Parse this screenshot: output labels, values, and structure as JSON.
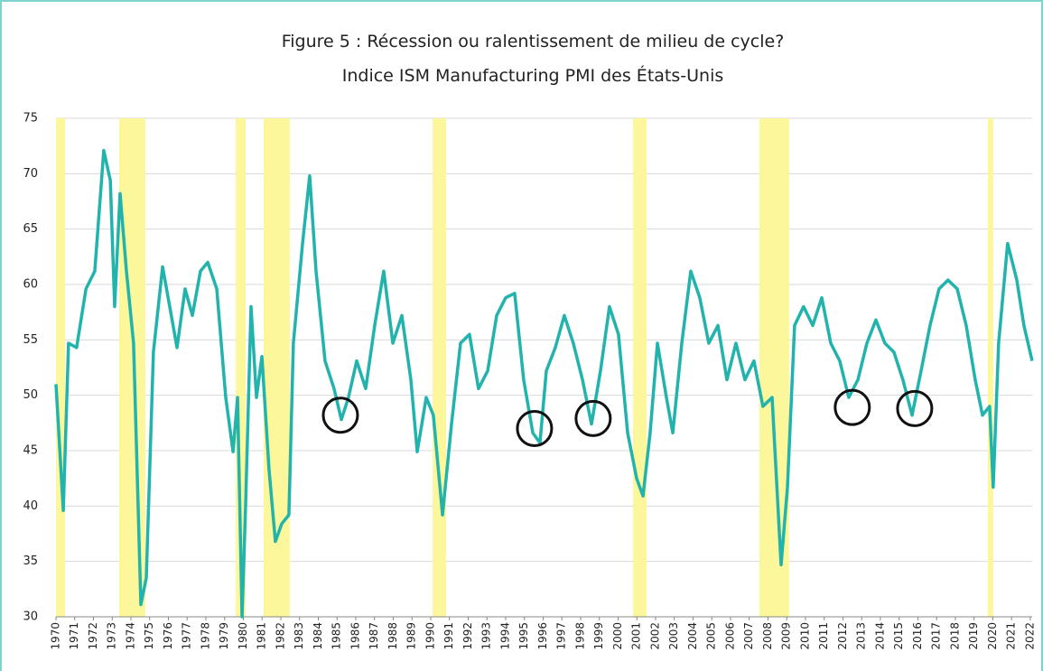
{
  "chart_data": {
    "type": "line",
    "title": "Figure 5 : Récession ou ralentissement de milieu de cycle?",
    "subtitle": "Indice ISM Manufacturing PMI des États-Unis",
    "color": "#22b3ad",
    "band_color": "#fbf79a",
    "grid": true,
    "xlim": [
      1970,
      2022.1
    ],
    "ylim": [
      30,
      75
    ],
    "yticks": [
      30,
      35,
      40,
      45,
      50,
      55,
      60,
      65,
      70,
      75
    ],
    "xticks": [
      1970,
      1971,
      1972,
      1973,
      1974,
      1975,
      1976,
      1977,
      1978,
      1979,
      1980,
      1981,
      1982,
      1983,
      1984,
      1985,
      1986,
      1987,
      1988,
      1989,
      1990,
      1991,
      1992,
      1993,
      1994,
      1995,
      1996,
      1997,
      1998,
      1999,
      2000,
      2001,
      2002,
      2003,
      2004,
      2005,
      2006,
      2007,
      2008,
      2009,
      2010,
      2011,
      2012,
      2013,
      2014,
      2015,
      2016,
      2017,
      2018,
      2019,
      2020,
      2021,
      2022
    ],
    "recessions": [
      [
        1970.0,
        1970.48
      ],
      [
        1973.37,
        1974.77
      ],
      [
        1979.59,
        1980.12
      ],
      [
        1981.08,
        1982.48
      ],
      [
        1990.1,
        1990.82
      ],
      [
        2000.8,
        2001.52
      ],
      [
        2007.54,
        2009.13
      ],
      [
        2019.73,
        2020.02
      ]
    ],
    "highlights": [
      {
        "x": 1985.18,
        "y": 48.2
      },
      {
        "x": 1995.54,
        "y": 47.0
      },
      {
        "x": 1998.67,
        "y": 47.9
      },
      {
        "x": 2012.5,
        "y": 48.9
      },
      {
        "x": 2015.83,
        "y": 48.8
      }
    ],
    "x": [
      1970.0,
      1970.39,
      1970.67,
      1971.1,
      1971.6,
      1972.07,
      1972.55,
      1972.9,
      1973.13,
      1973.42,
      1973.76,
      1974.14,
      1974.53,
      1974.82,
      1975.2,
      1975.69,
      1976.07,
      1976.46,
      1976.89,
      1977.28,
      1977.71,
      1978.1,
      1978.58,
      1979.06,
      1979.45,
      1979.69,
      1979.93,
      1980.12,
      1980.41,
      1980.7,
      1980.99,
      1981.37,
      1981.71,
      1982.05,
      1982.43,
      1982.67,
      1983.16,
      1983.54,
      1983.88,
      1984.36,
      1984.84,
      1985.23,
      1985.61,
      1986.05,
      1986.53,
      1987.01,
      1987.49,
      1987.98,
      1988.46,
      1988.94,
      1989.28,
      1989.76,
      1990.14,
      1990.63,
      1991.11,
      1991.59,
      1992.07,
      1992.55,
      1993.04,
      1993.52,
      1994.0,
      1994.48,
      1994.96,
      1995.45,
      1995.83,
      1996.17,
      1996.65,
      1997.13,
      1997.61,
      1998.1,
      1998.58,
      1999.06,
      1999.54,
      2000.02,
      2000.51,
      2000.99,
      2001.33,
      2001.71,
      2002.1,
      2002.58,
      2002.92,
      2003.4,
      2003.88,
      2004.36,
      2004.84,
      2005.33,
      2005.81,
      2006.29,
      2006.77,
      2007.25,
      2007.73,
      2008.22,
      2008.7,
      2009.04,
      2009.42,
      2009.9,
      2010.39,
      2010.87,
      2011.35,
      2011.83,
      2012.31,
      2012.8,
      2013.28,
      2013.76,
      2014.24,
      2014.72,
      2015.2,
      2015.69,
      2016.17,
      2016.65,
      2017.13,
      2017.61,
      2018.1,
      2018.58,
      2019.06,
      2019.45,
      2019.83,
      2020.02,
      2020.31,
      2020.79,
      2021.28,
      2021.66,
      2022.1
    ],
    "values": [
      51.0,
      39.6,
      54.7,
      54.3,
      59.6,
      61.2,
      72.1,
      69.4,
      58,
      68.2,
      61.2,
      54.7,
      31.1,
      33.5,
      53.9,
      61.6,
      58,
      54.3,
      59.6,
      57.2,
      61.2,
      62,
      59.6,
      49.8,
      44.9,
      49.8,
      30,
      40,
      58,
      49.8,
      53.5,
      43.3,
      36.8,
      38.4,
      39.2,
      54.7,
      63.7,
      69.8,
      61.2,
      53.1,
      50.6,
      47.8,
      49.8,
      53.1,
      50.6,
      56.3,
      61.2,
      54.7,
      57.2,
      51.4,
      44.9,
      49.8,
      48.2,
      39.2,
      47.4,
      54.7,
      55.5,
      50.6,
      52.2,
      57.2,
      58.8,
      59.2,
      51.4,
      46.6,
      45.7,
      52.2,
      54.3,
      57.2,
      54.7,
      51.4,
      47.4,
      52.2,
      58,
      55.5,
      46.6,
      42.5,
      40.9,
      46.6,
      54.7,
      49.8,
      46.6,
      54.7,
      61.2,
      58.8,
      54.7,
      56.3,
      51.4,
      54.7,
      51.4,
      53.1,
      49,
      49.8,
      34.7,
      41.7,
      56.3,
      58,
      56.3,
      58.8,
      54.7,
      53.1,
      49.8,
      51.4,
      54.7,
      56.8,
      54.7,
      53.9,
      51.4,
      48.2,
      52.2,
      56.3,
      59.6,
      60.4,
      59.6,
      56.3,
      51.4,
      48.2,
      49,
      41.7,
      54.7,
      63.7,
      60.4,
      56.3,
      53.1
    ]
  }
}
